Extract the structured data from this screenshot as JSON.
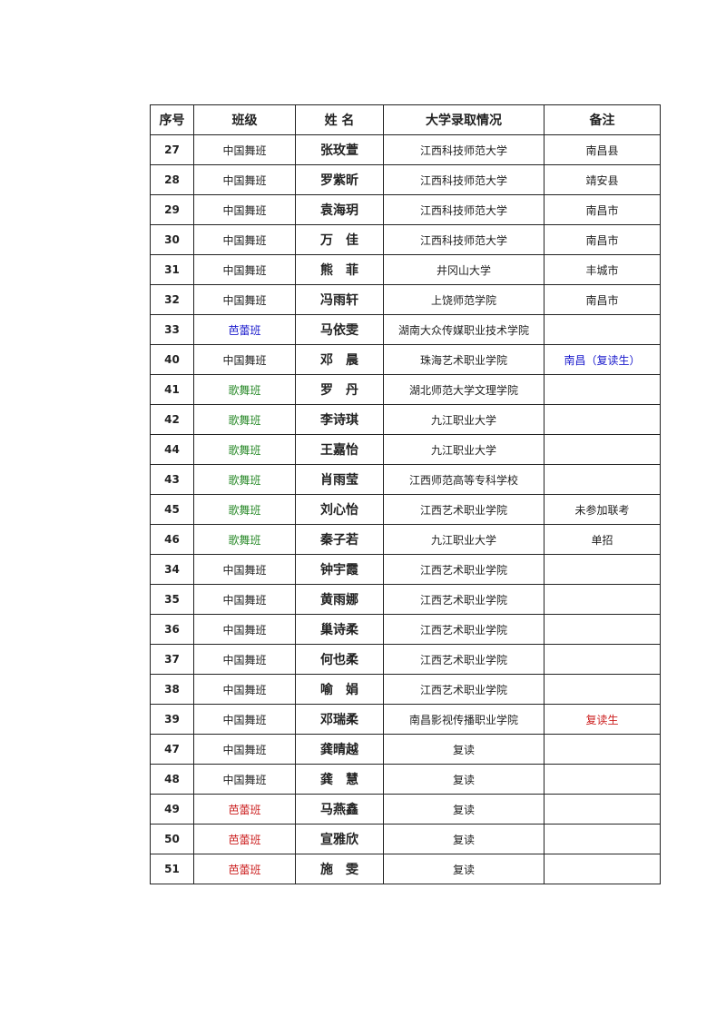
{
  "headers": [
    "序号",
    "班级",
    "姓 名",
    "大学录取情况",
    "备注"
  ],
  "colors": {
    "default": "#222222",
    "blue": "#1a1acc",
    "green": "#2a8a2a",
    "red": "#cc2020"
  },
  "rows": [
    {
      "no": "27",
      "cls": "中国舞班",
      "name": "张玫萱",
      "uni": "江西科技师范大学",
      "note": "南昌县"
    },
    {
      "no": "28",
      "cls": "中国舞班",
      "name": "罗紫昕",
      "uni": "江西科技师范大学",
      "note": "靖安县"
    },
    {
      "no": "29",
      "cls": "中国舞班",
      "name": "袁海玥",
      "uni": "江西科技师范大学",
      "note": "南昌市"
    },
    {
      "no": "30",
      "cls": "中国舞班",
      "name": "万　佳",
      "uni": "江西科技师范大学",
      "note": "南昌市"
    },
    {
      "no": "31",
      "cls": "中国舞班",
      "name": "熊　菲",
      "uni": "井冈山大学",
      "note": "丰城市"
    },
    {
      "no": "32",
      "cls": "中国舞班",
      "name": "冯雨轩",
      "uni": "上饶师范学院",
      "note": "南昌市"
    },
    {
      "no": "33",
      "cls": "芭蕾班",
      "cls_color": "blue",
      "name": "马依雯",
      "uni": "湖南大众传媒职业技术学院",
      "note": ""
    },
    {
      "no": "40",
      "cls": "中国舞班",
      "name": "邓　晨",
      "uni": "珠海艺术职业学院",
      "note": "南昌（复读生）",
      "note_color": "blue"
    },
    {
      "no": "41",
      "cls": "歌舞班",
      "cls_color": "green",
      "name": "罗　丹",
      "uni": "湖北师范大学文理学院",
      "note": ""
    },
    {
      "no": "42",
      "cls": "歌舞班",
      "cls_color": "green",
      "name": "李诗琪",
      "uni": "九江职业大学",
      "note": ""
    },
    {
      "no": "44",
      "cls": "歌舞班",
      "cls_color": "green",
      "name": "王嘉怡",
      "uni": "九江职业大学",
      "note": ""
    },
    {
      "no": "43",
      "cls": "歌舞班",
      "cls_color": "green",
      "name": "肖雨莹",
      "uni": "江西师范高等专科学校",
      "note": ""
    },
    {
      "no": "45",
      "cls": "歌舞班",
      "cls_color": "green",
      "name": "刘心怡",
      "uni": "江西艺术职业学院",
      "note": "未参加联考"
    },
    {
      "no": "46",
      "cls": "歌舞班",
      "cls_color": "green",
      "name": "秦子若",
      "uni": "九江职业大学",
      "note": "单招"
    },
    {
      "no": "34",
      "cls": "中国舞班",
      "name": "钟宇霞",
      "uni": "江西艺术职业学院",
      "note": ""
    },
    {
      "no": "35",
      "cls": "中国舞班",
      "name": "黄雨娜",
      "uni": "江西艺术职业学院",
      "note": ""
    },
    {
      "no": "36",
      "cls": "中国舞班",
      "name": "巢诗柔",
      "uni": "江西艺术职业学院",
      "note": ""
    },
    {
      "no": "37",
      "cls": "中国舞班",
      "name": "何也柔",
      "uni": "江西艺术职业学院",
      "note": ""
    },
    {
      "no": "38",
      "cls": "中国舞班",
      "name": "喻　娟",
      "uni": "江西艺术职业学院",
      "note": ""
    },
    {
      "no": "39",
      "cls": "中国舞班",
      "name": "邓瑞柔",
      "uni": "南昌影视传播职业学院",
      "note": "复读生",
      "note_color": "red"
    },
    {
      "no": "47",
      "cls": "中国舞班",
      "name": "龚晴越",
      "uni": "复读",
      "note": ""
    },
    {
      "no": "48",
      "cls": "中国舞班",
      "name": "龚　慧",
      "uni": "复读",
      "note": ""
    },
    {
      "no": "49",
      "cls": "芭蕾班",
      "cls_color": "red",
      "name": "马燕鑫",
      "uni": "复读",
      "note": ""
    },
    {
      "no": "50",
      "cls": "芭蕾班",
      "cls_color": "red",
      "name": "宣雅欣",
      "uni": "复读",
      "note": ""
    },
    {
      "no": "51",
      "cls": "芭蕾班",
      "cls_color": "red",
      "name": "施　雯",
      "uni": "复读",
      "note": ""
    }
  ]
}
